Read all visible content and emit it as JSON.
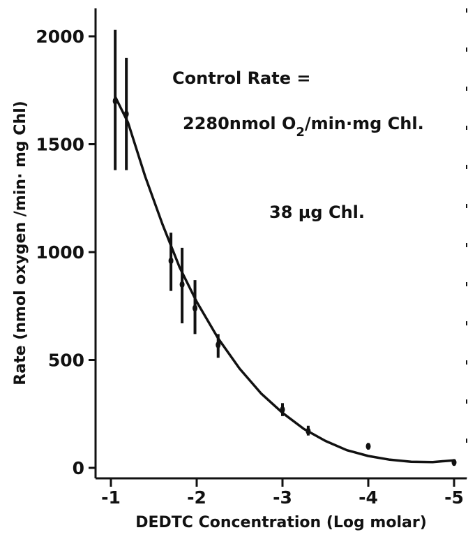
{
  "chart_data": {
    "type": "line",
    "title": "",
    "xlabel": "DEDTC Concentration (Log molar)",
    "ylabel": "Rate (nmol oxygen /min· mg Chl)",
    "xlim": [
      -1,
      -5
    ],
    "ylim": [
      0,
      2000
    ],
    "x_ticks": [
      -1,
      -2,
      -3,
      -4,
      -5
    ],
    "x_tick_labels": [
      "-1",
      "-2",
      "-3",
      "-4",
      "-5"
    ],
    "y_ticks": [
      0,
      500,
      1000,
      1500,
      2000
    ],
    "y_tick_labels": [
      "0",
      "500",
      "1000",
      "1500",
      "2000"
    ],
    "grid": false,
    "annotations": [
      {
        "id": "control",
        "text": "Control Rate ="
      },
      {
        "id": "rate_prefix",
        "text": "2280nmol O"
      },
      {
        "id": "rate_sub",
        "text": "2"
      },
      {
        "id": "rate_suffix",
        "text": "/min·mg Chl."
      },
      {
        "id": "chl",
        "text": "38 µg Chl."
      }
    ],
    "series": [
      {
        "points": [
          {
            "x": -1.05,
            "y": 1700,
            "low": 1380,
            "high": 2030
          },
          {
            "x": -1.18,
            "y": 1640,
            "low": 1380,
            "high": 1900
          },
          {
            "x": -1.7,
            "y": 960,
            "low": 820,
            "high": 1090
          },
          {
            "x": -1.83,
            "y": 850,
            "low": 670,
            "high": 1020
          },
          {
            "x": -1.98,
            "y": 740,
            "low": 620,
            "high": 870
          },
          {
            "x": -2.25,
            "y": 570,
            "low": 510,
            "high": 620
          },
          {
            "x": -3.0,
            "y": 270,
            "low": 240,
            "high": 300
          },
          {
            "x": -3.3,
            "y": 170,
            "low": 150,
            "high": 195
          },
          {
            "x": -4.0,
            "y": 100,
            "low": 85,
            "high": 115
          },
          {
            "x": -5.0,
            "y": 25,
            "low": 10,
            "high": 40
          }
        ],
        "fit_curve": [
          {
            "x": -1.05,
            "y": 1720
          },
          {
            "x": -1.2,
            "y": 1600
          },
          {
            "x": -1.4,
            "y": 1350
          },
          {
            "x": -1.6,
            "y": 1130
          },
          {
            "x": -1.8,
            "y": 930
          },
          {
            "x": -2.0,
            "y": 770
          },
          {
            "x": -2.25,
            "y": 600
          },
          {
            "x": -2.5,
            "y": 460
          },
          {
            "x": -2.75,
            "y": 345
          },
          {
            "x": -3.0,
            "y": 255
          },
          {
            "x": -3.25,
            "y": 180
          },
          {
            "x": -3.5,
            "y": 125
          },
          {
            "x": -3.75,
            "y": 82
          },
          {
            "x": -4.0,
            "y": 55
          },
          {
            "x": -4.25,
            "y": 38
          },
          {
            "x": -4.5,
            "y": 28
          },
          {
            "x": -4.75,
            "y": 27
          },
          {
            "x": -5.0,
            "y": 35
          }
        ]
      }
    ]
  }
}
